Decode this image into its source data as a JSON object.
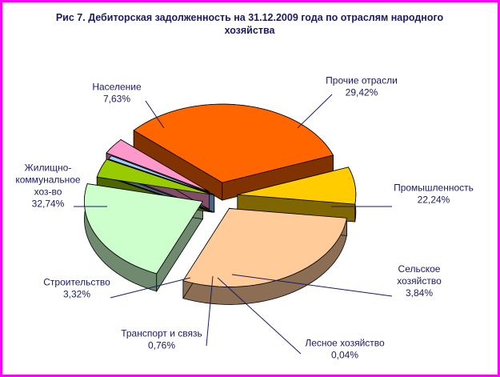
{
  "chart_data": {
    "type": "pie",
    "title_lines": [
      "Рис 7. Дебиторская задолженность на 31.12.2009 года по отраслям народного",
      "хозяйства"
    ],
    "slices": [
      {
        "label_lines": [
          "Прочие отрасли"
        ],
        "value": 29.42,
        "value_label": "29,42%",
        "color": "#ffcc99",
        "side": "#8c6e54"
      },
      {
        "label_lines": [
          "Промышленность"
        ],
        "value": 22.24,
        "value_label": "22,24%",
        "color": "#ccffcc",
        "side": "#6f8a6f"
      },
      {
        "label_lines": [
          "Сельское",
          "хозяйство"
        ],
        "value": 3.84,
        "value_label": "3,84%",
        "color": "#99cc00",
        "side": "#4d6600"
      },
      {
        "label_lines": [
          "Лесное хозяйство"
        ],
        "value": 0.04,
        "value_label": "0,04%",
        "color": "#c0c0c0",
        "side": "#606060"
      },
      {
        "label_lines": [
          "Транспорт и связь"
        ],
        "value": 0.76,
        "value_label": "0,76%",
        "color": "#99ccff",
        "side": "#4d6680"
      },
      {
        "label_lines": [
          "Строительство"
        ],
        "value": 3.32,
        "value_label": "3,32%",
        "color": "#ff99cc",
        "side": "#804d66"
      },
      {
        "label_lines": [
          "Жилищно-",
          "коммунальное",
          "хоз-во"
        ],
        "value": 32.74,
        "value_label": "32,74%",
        "color": "#ff6600",
        "side": "#803300"
      },
      {
        "label_lines": [
          "Население"
        ],
        "value": 7.63,
        "value_label": "7,63%",
        "color": "#ffcc00",
        "side": "#806600"
      }
    ],
    "style": "3d-exploded",
    "legend": "none"
  }
}
